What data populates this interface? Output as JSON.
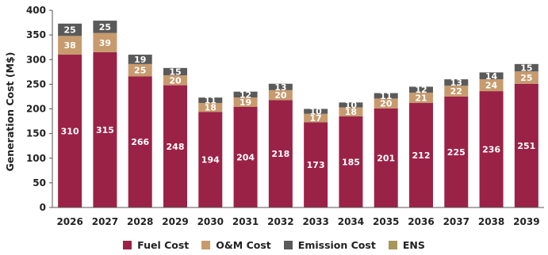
{
  "chart_data": {
    "type": "bar",
    "stacked": true,
    "ylabel": "Generation Cost (M$)",
    "xlabel": "",
    "title": "",
    "ylim": [
      0,
      400
    ],
    "yticks": [
      0,
      50,
      100,
      150,
      200,
      250,
      300,
      350,
      400
    ],
    "grid": false,
    "legend_position": "bottom",
    "categories": [
      "2026",
      "2027",
      "2028",
      "2029",
      "2030",
      "2031",
      "2032",
      "2033",
      "2034",
      "2035",
      "2036",
      "2037",
      "2038",
      "2039"
    ],
    "series": [
      {
        "name": "Fuel Cost",
        "color": "#9b2247",
        "values": [
          310,
          315,
          266,
          248,
          194,
          204,
          218,
          173,
          185,
          201,
          212,
          225,
          236,
          251
        ]
      },
      {
        "name": "O&M Cost",
        "color": "#c79b6e",
        "values": [
          38,
          39,
          25,
          20,
          18,
          19,
          20,
          17,
          18,
          20,
          21,
          22,
          24,
          25
        ]
      },
      {
        "name": "Emission Cost",
        "color": "#5a5a5a",
        "values": [
          25,
          25,
          19,
          15,
          11,
          12,
          13,
          10,
          10,
          11,
          12,
          13,
          14,
          15
        ]
      },
      {
        "name": "ENS",
        "color": "#a8965a",
        "values": [
          0,
          0,
          0,
          0,
          0,
          0,
          0,
          0,
          0,
          0,
          0,
          0,
          0,
          0
        ]
      }
    ]
  }
}
